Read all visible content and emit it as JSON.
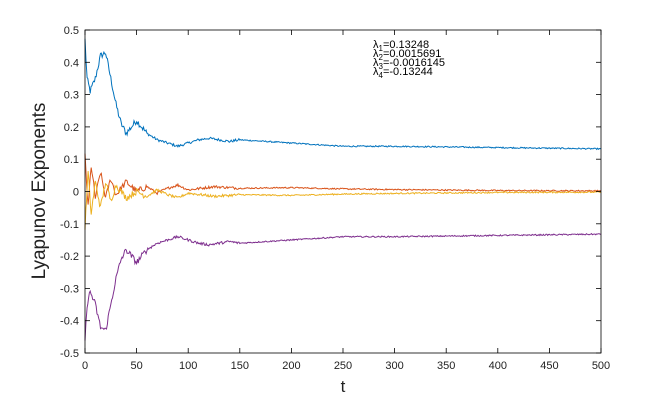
{
  "chart_data": {
    "type": "line",
    "title": "",
    "xlabel": "t",
    "ylabel": "Lyapunov Exponents",
    "xlim": [
      0,
      500
    ],
    "ylim": [
      -0.5,
      0.5
    ],
    "xticks": [
      "0",
      "50",
      "100",
      "150",
      "200",
      "250",
      "300",
      "350",
      "400",
      "450",
      "500"
    ],
    "yticks": [
      "0.5",
      "0.4",
      "0.3",
      "0.2",
      "0.1",
      "0",
      "-0.1",
      "-0.2",
      "-0.3",
      "-0.4",
      "-0.5"
    ],
    "grid": false,
    "legend_position": "top-right",
    "series": [
      {
        "name": "λ1=0.13248",
        "color": "#0072BD",
        "x": [
          0,
          2,
          5,
          10,
          15,
          20,
          25,
          30,
          35,
          40,
          45,
          50,
          55,
          60,
          70,
          80,
          90,
          100,
          110,
          120,
          130,
          140,
          150,
          175,
          200,
          225,
          250,
          275,
          300,
          350,
          400,
          450,
          500
        ],
        "y": [
          0.47,
          0.35,
          0.31,
          0.35,
          0.42,
          0.43,
          0.35,
          0.27,
          0.21,
          0.18,
          0.2,
          0.22,
          0.2,
          0.18,
          0.16,
          0.15,
          0.14,
          0.15,
          0.16,
          0.165,
          0.16,
          0.155,
          0.16,
          0.155,
          0.15,
          0.145,
          0.14,
          0.14,
          0.14,
          0.138,
          0.136,
          0.134,
          0.132
        ]
      },
      {
        "name": "λ2=0.0015691",
        "color": "#D95319",
        "x": [
          0,
          3,
          6,
          10,
          15,
          20,
          25,
          30,
          40,
          50,
          60,
          70,
          80,
          90,
          100,
          125,
          150,
          200,
          250,
          300,
          400,
          500
        ],
        "y": [
          0.11,
          -0.05,
          0.08,
          -0.02,
          0.06,
          -0.02,
          0.04,
          -0.01,
          0.03,
          0.0,
          0.015,
          -0.005,
          0.01,
          0.02,
          0.005,
          0.015,
          0.01,
          0.012,
          0.008,
          0.006,
          0.003,
          0.002
        ]
      },
      {
        "name": "λ3=-0.0016145",
        "color": "#EDB120",
        "x": [
          0,
          3,
          6,
          10,
          15,
          20,
          25,
          30,
          40,
          50,
          60,
          70,
          80,
          90,
          100,
          125,
          150,
          200,
          250,
          300,
          400,
          500
        ],
        "y": [
          -0.11,
          0.06,
          -0.07,
          0.03,
          -0.05,
          0.03,
          -0.03,
          0.02,
          -0.02,
          0.0,
          -0.015,
          0.005,
          -0.01,
          -0.02,
          -0.005,
          -0.015,
          -0.01,
          -0.012,
          -0.008,
          -0.006,
          -0.003,
          -0.002
        ]
      },
      {
        "name": "λ4=-0.13244",
        "color": "#7E2F8E",
        "x": [
          0,
          2,
          5,
          10,
          15,
          20,
          25,
          30,
          35,
          40,
          45,
          50,
          55,
          60,
          70,
          80,
          90,
          100,
          110,
          120,
          130,
          140,
          150,
          175,
          200,
          225,
          250,
          275,
          300,
          350,
          400,
          450,
          500
        ],
        "y": [
          -0.47,
          -0.35,
          -0.31,
          -0.35,
          -0.42,
          -0.43,
          -0.35,
          -0.27,
          -0.21,
          -0.18,
          -0.2,
          -0.22,
          -0.2,
          -0.18,
          -0.16,
          -0.15,
          -0.14,
          -0.15,
          -0.16,
          -0.165,
          -0.16,
          -0.155,
          -0.16,
          -0.155,
          -0.15,
          -0.145,
          -0.14,
          -0.14,
          -0.14,
          -0.138,
          -0.136,
          -0.134,
          -0.132
        ]
      }
    ]
  }
}
